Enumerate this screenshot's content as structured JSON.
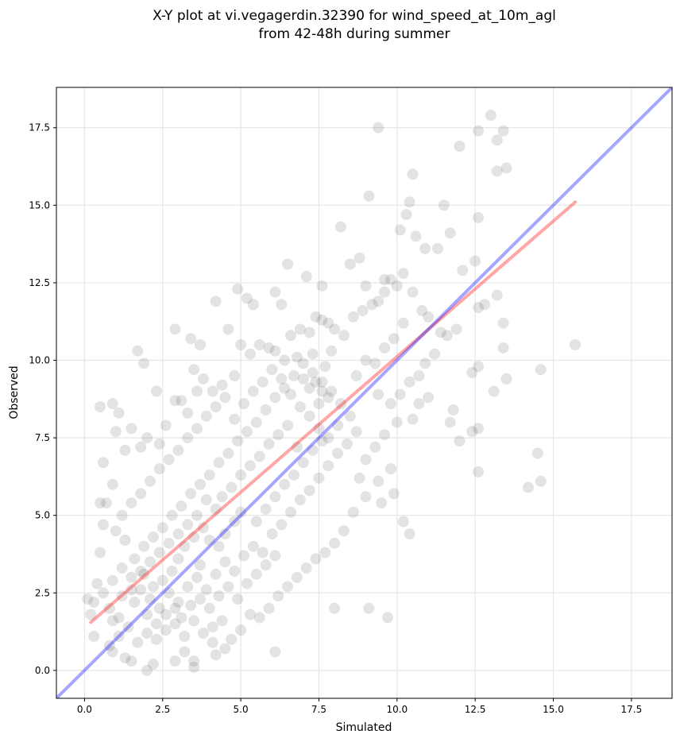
{
  "chart_data": {
    "type": "scatter",
    "title_line1": "X-Y plot at vi.vegagerdin.32390 for wind_speed_at_10m_agl",
    "title_line2": "from 42-48h during summer",
    "xlabel": "Simulated",
    "ylabel": "Observed",
    "xlim": [
      -0.9,
      18.8
    ],
    "ylim": [
      -0.9,
      18.8
    ],
    "xticks": [
      0.0,
      2.5,
      5.0,
      7.5,
      10.0,
      12.5,
      15.0,
      17.5
    ],
    "yticks": [
      0.0,
      2.5,
      5.0,
      7.5,
      10.0,
      12.5,
      15.0,
      17.5
    ],
    "xtick_labels": [
      "0.0",
      "2.5",
      "5.0",
      "7.5",
      "10.0",
      "12.5",
      "15.0",
      "17.5"
    ],
    "ytick_labels": [
      "0.0",
      "2.5",
      "5.0",
      "7.5",
      "10.0",
      "12.5",
      "15.0",
      "17.5"
    ],
    "grid": true,
    "point_color": "#404040",
    "point_alpha": 0.15,
    "identity_line": {
      "color": "#0000ff",
      "x": [
        -0.9,
        18.8
      ],
      "y": [
        -0.9,
        18.8
      ]
    },
    "fit_line": {
      "color": "#ff0000",
      "x": [
        0.2,
        15.7
      ],
      "y": [
        1.55,
        15.1
      ]
    },
    "points": [
      [
        0.5,
        8.5
      ],
      [
        0.9,
        8.6
      ],
      [
        1.1,
        8.3
      ],
      [
        1.7,
        10.3
      ],
      [
        1.9,
        9.9
      ],
      [
        2.3,
        9.0
      ],
      [
        2.9,
        11.0
      ],
      [
        3.4,
        10.7
      ],
      [
        3.7,
        10.5
      ],
      [
        4.2,
        11.9
      ],
      [
        4.6,
        11.0
      ],
      [
        4.9,
        12.3
      ],
      [
        5.2,
        12.0
      ],
      [
        5.4,
        11.8
      ],
      [
        6.1,
        12.2
      ],
      [
        6.3,
        11.8
      ],
      [
        6.5,
        13.1
      ],
      [
        7.1,
        12.7
      ],
      [
        7.6,
        12.4
      ],
      [
        8.2,
        14.3
      ],
      [
        8.5,
        13.1
      ],
      [
        8.8,
        13.3
      ],
      [
        9.0,
        12.4
      ],
      [
        9.1,
        15.3
      ],
      [
        9.4,
        17.5
      ],
      [
        9.6,
        12.6
      ],
      [
        10.1,
        14.2
      ],
      [
        10.3,
        14.7
      ],
      [
        10.4,
        15.1
      ],
      [
        10.5,
        16.0
      ],
      [
        10.6,
        14.0
      ],
      [
        10.9,
        13.6
      ],
      [
        11.3,
        13.6
      ],
      [
        11.5,
        15.0
      ],
      [
        11.7,
        14.1
      ],
      [
        12.0,
        16.9
      ],
      [
        12.6,
        17.4
      ],
      [
        13.0,
        17.9
      ],
      [
        13.2,
        17.1
      ],
      [
        13.4,
        17.4
      ],
      [
        13.2,
        16.1
      ],
      [
        13.5,
        16.2
      ],
      [
        12.6,
        14.6
      ],
      [
        12.5,
        13.2
      ],
      [
        12.1,
        12.9
      ],
      [
        13.2,
        12.1
      ],
      [
        13.4,
        11.2
      ],
      [
        12.8,
        11.8
      ],
      [
        12.6,
        11.7
      ],
      [
        13.1,
        9.0
      ],
      [
        13.5,
        9.4
      ],
      [
        13.4,
        10.4
      ],
      [
        12.6,
        9.8
      ],
      [
        12.4,
        9.6
      ],
      [
        12.0,
        7.4
      ],
      [
        12.4,
        7.7
      ],
      [
        12.6,
        7.8
      ],
      [
        12.6,
        6.4
      ],
      [
        11.7,
        8.0
      ],
      [
        11.8,
        8.4
      ],
      [
        14.2,
        5.9
      ],
      [
        14.6,
        6.1
      ],
      [
        14.5,
        7.0
      ],
      [
        14.6,
        9.7
      ],
      [
        15.7,
        10.5
      ],
      [
        10.4,
        4.4
      ],
      [
        10.2,
        4.8
      ],
      [
        9.9,
        5.7
      ],
      [
        9.7,
        1.7
      ],
      [
        9.1,
        2.0
      ],
      [
        8.0,
        2.0
      ],
      [
        6.1,
        0.6
      ],
      [
        0.8,
        0.8
      ],
      [
        0.9,
        0.6
      ],
      [
        1.3,
        0.4
      ],
      [
        1.5,
        0.3
      ],
      [
        2.0,
        0.0
      ],
      [
        2.2,
        0.2
      ],
      [
        2.9,
        0.3
      ],
      [
        3.2,
        0.6
      ],
      [
        3.5,
        0.3
      ],
      [
        3.5,
        0.1
      ],
      [
        4.2,
        0.5
      ],
      [
        4.5,
        0.7
      ],
      [
        4.1,
        0.9
      ],
      [
        0.3,
        1.1
      ],
      [
        0.2,
        1.8
      ],
      [
        0.1,
        2.3
      ],
      [
        0.3,
        2.2
      ],
      [
        0.4,
        2.8
      ],
      [
        0.5,
        3.8
      ],
      [
        0.6,
        4.7
      ],
      [
        0.5,
        5.4
      ],
      [
        0.7,
        5.4
      ],
      [
        0.6,
        6.7
      ],
      [
        0.9,
        6.0
      ],
      [
        1.0,
        7.7
      ],
      [
        1.3,
        7.1
      ],
      [
        1.5,
        7.8
      ],
      [
        1.8,
        7.2
      ],
      [
        2.0,
        7.5
      ],
      [
        2.4,
        7.3
      ],
      [
        2.6,
        7.9
      ],
      [
        2.9,
        8.7
      ],
      [
        3.1,
        8.7
      ],
      [
        3.3,
        8.3
      ],
      [
        3.5,
        9.7
      ],
      [
        3.8,
        9.4
      ],
      [
        3.6,
        9.0
      ],
      [
        4.1,
        9.0
      ],
      [
        4.4,
        9.2
      ],
      [
        4.8,
        9.5
      ],
      [
        5.0,
        10.5
      ],
      [
        5.3,
        10.2
      ],
      [
        5.6,
        10.5
      ],
      [
        5.9,
        10.4
      ],
      [
        6.1,
        10.3
      ],
      [
        6.4,
        10.0
      ],
      [
        6.6,
        10.8
      ],
      [
        6.9,
        11.0
      ],
      [
        7.2,
        10.9
      ],
      [
        7.4,
        11.4
      ],
      [
        7.6,
        11.3
      ],
      [
        7.8,
        11.2
      ],
      [
        8.0,
        11.0
      ],
      [
        8.3,
        10.8
      ],
      [
        8.6,
        11.4
      ],
      [
        8.9,
        11.6
      ],
      [
        9.2,
        11.8
      ],
      [
        9.4,
        11.9
      ],
      [
        9.6,
        12.2
      ],
      [
        9.8,
        12.6
      ],
      [
        10.0,
        12.4
      ],
      [
        10.2,
        12.8
      ],
      [
        10.5,
        12.2
      ],
      [
        10.8,
        11.6
      ],
      [
        11.0,
        11.4
      ],
      [
        11.4,
        10.9
      ],
      [
        11.6,
        10.8
      ],
      [
        11.9,
        11.0
      ],
      [
        10.2,
        11.2
      ],
      [
        9.9,
        10.7
      ],
      [
        9.6,
        10.4
      ],
      [
        9.3,
        9.9
      ],
      [
        9.0,
        10.0
      ],
      [
        8.7,
        9.5
      ],
      [
        9.4,
        8.9
      ],
      [
        9.8,
        8.6
      ],
      [
        10.1,
        8.9
      ],
      [
        10.4,
        9.3
      ],
      [
        10.7,
        9.5
      ],
      [
        10.9,
        9.9
      ],
      [
        11.2,
        10.2
      ],
      [
        11.0,
        8.8
      ],
      [
        10.7,
        8.6
      ],
      [
        10.5,
        8.1
      ],
      [
        10.0,
        8.0
      ],
      [
        9.6,
        7.6
      ],
      [
        9.3,
        7.2
      ],
      [
        9.0,
        6.8
      ],
      [
        8.8,
        6.2
      ],
      [
        9.4,
        6.1
      ],
      [
        9.8,
        6.5
      ],
      [
        9.5,
        5.4
      ],
      [
        9.0,
        5.6
      ],
      [
        8.6,
        5.1
      ],
      [
        8.3,
        4.5
      ],
      [
        8.0,
        4.1
      ],
      [
        7.7,
        3.8
      ],
      [
        7.4,
        3.6
      ],
      [
        7.1,
        3.3
      ],
      [
        6.8,
        3.0
      ],
      [
        6.5,
        2.7
      ],
      [
        6.2,
        2.4
      ],
      [
        5.9,
        2.0
      ],
      [
        5.6,
        1.7
      ],
      [
        5.3,
        1.8
      ],
      [
        5.0,
        1.3
      ],
      [
        4.7,
        1.0
      ],
      [
        4.4,
        1.6
      ],
      [
        4.1,
        1.4
      ],
      [
        3.8,
        1.2
      ],
      [
        3.5,
        1.6
      ],
      [
        3.2,
        1.1
      ],
      [
        2.9,
        1.5
      ],
      [
        2.6,
        1.3
      ],
      [
        2.3,
        1.0
      ],
      [
        2.0,
        1.2
      ],
      [
        1.7,
        0.9
      ],
      [
        1.4,
        1.4
      ],
      [
        1.1,
        1.7
      ],
      [
        0.8,
        2.0
      ],
      [
        0.6,
        2.5
      ],
      [
        0.9,
        2.9
      ],
      [
        1.2,
        3.3
      ],
      [
        1.5,
        3.0
      ],
      [
        1.8,
        2.6
      ],
      [
        2.1,
        2.3
      ],
      [
        2.4,
        2.0
      ],
      [
        2.7,
        2.5
      ],
      [
        3.0,
        2.2
      ],
      [
        3.3,
        2.7
      ],
      [
        3.6,
        3.0
      ],
      [
        3.9,
        2.6
      ],
      [
        4.2,
        3.1
      ],
      [
        4.5,
        3.5
      ],
      [
        4.8,
        3.2
      ],
      [
        5.1,
        3.7
      ],
      [
        5.4,
        4.0
      ],
      [
        5.7,
        3.8
      ],
      [
        6.0,
        4.4
      ],
      [
        6.3,
        4.7
      ],
      [
        6.6,
        5.1
      ],
      [
        6.9,
        5.5
      ],
      [
        7.2,
        5.8
      ],
      [
        7.5,
        6.2
      ],
      [
        7.8,
        6.6
      ],
      [
        8.1,
        7.0
      ],
      [
        8.4,
        7.3
      ],
      [
        8.7,
        7.7
      ],
      [
        8.5,
        8.2
      ],
      [
        8.2,
        8.6
      ],
      [
        7.9,
        9.0
      ],
      [
        7.6,
        9.3
      ],
      [
        7.3,
        9.6
      ],
      [
        7.0,
        9.9
      ],
      [
        6.7,
        9.5
      ],
      [
        6.4,
        9.1
      ],
      [
        6.1,
        8.8
      ],
      [
        5.8,
        8.4
      ],
      [
        5.5,
        8.0
      ],
      [
        5.2,
        7.7
      ],
      [
        4.9,
        7.4
      ],
      [
        4.6,
        7.0
      ],
      [
        4.3,
        6.7
      ],
      [
        4.0,
        6.3
      ],
      [
        3.7,
        6.0
      ],
      [
        3.4,
        5.7
      ],
      [
        3.1,
        5.3
      ],
      [
        2.8,
        5.0
      ],
      [
        2.5,
        4.6
      ],
      [
        2.2,
        4.3
      ],
      [
        1.9,
        4.0
      ],
      [
        1.6,
        3.6
      ],
      [
        1.3,
        4.2
      ],
      [
        1.0,
        4.5
      ],
      [
        1.2,
        5.0
      ],
      [
        1.5,
        5.4
      ],
      [
        1.8,
        5.7
      ],
      [
        2.1,
        6.1
      ],
      [
        2.4,
        6.5
      ],
      [
        2.7,
        6.8
      ],
      [
        3.0,
        7.1
      ],
      [
        3.3,
        7.5
      ],
      [
        3.6,
        7.8
      ],
      [
        3.9,
        8.2
      ],
      [
        4.2,
        8.5
      ],
      [
        4.5,
        8.8
      ],
      [
        4.8,
        8.1
      ],
      [
        5.1,
        8.6
      ],
      [
        5.4,
        9.0
      ],
      [
        5.7,
        9.3
      ],
      [
        6.0,
        9.7
      ],
      [
        6.3,
        9.4
      ],
      [
        6.6,
        8.9
      ],
      [
        6.9,
        8.5
      ],
      [
        7.2,
        8.2
      ],
      [
        7.5,
        7.8
      ],
      [
        7.8,
        7.5
      ],
      [
        8.1,
        7.9
      ],
      [
        7.4,
        9.3
      ],
      [
        7.6,
        9.0
      ],
      [
        7.8,
        8.8
      ],
      [
        7.5,
        8.6
      ],
      [
        7.2,
        9.1
      ],
      [
        7.0,
        9.4
      ],
      [
        7.7,
        9.8
      ],
      [
        7.3,
        10.2
      ],
      [
        6.8,
        10.1
      ],
      [
        7.9,
        10.3
      ],
      [
        3.0,
        3.6
      ],
      [
        3.2,
        4.0
      ],
      [
        3.5,
        4.3
      ],
      [
        3.8,
        4.6
      ],
      [
        4.0,
        4.2
      ],
      [
        4.3,
        4.0
      ],
      [
        3.7,
        3.4
      ],
      [
        2.8,
        3.2
      ],
      [
        2.5,
        2.9
      ],
      [
        2.2,
        2.7
      ],
      [
        1.9,
        3.1
      ],
      [
        1.6,
        2.2
      ],
      [
        2.0,
        1.8
      ],
      [
        2.3,
        1.5
      ],
      [
        2.6,
        1.8
      ],
      [
        2.9,
        2.0
      ],
      [
        3.1,
        1.7
      ],
      [
        3.4,
        2.1
      ],
      [
        3.7,
        2.3
      ],
      [
        4.0,
        2.0
      ],
      [
        4.3,
        2.4
      ],
      [
        4.6,
        2.7
      ],
      [
        4.9,
        2.3
      ],
      [
        5.2,
        2.8
      ],
      [
        5.5,
        3.1
      ],
      [
        5.8,
        3.4
      ],
      [
        6.1,
        3.7
      ],
      [
        5.5,
        4.8
      ],
      [
        5.8,
        5.2
      ],
      [
        6.1,
        5.6
      ],
      [
        6.4,
        6.0
      ],
      [
        6.7,
        6.3
      ],
      [
        7.0,
        6.7
      ],
      [
        7.3,
        7.1
      ],
      [
        7.6,
        7.4
      ],
      [
        4.4,
        5.6
      ],
      [
        4.7,
        5.9
      ],
      [
        5.0,
        6.3
      ],
      [
        5.3,
        6.6
      ],
      [
        5.6,
        6.9
      ],
      [
        5.9,
        7.3
      ],
      [
        6.2,
        7.6
      ],
      [
        6.5,
        7.9
      ],
      [
        6.8,
        7.2
      ],
      [
        5.0,
        5.1
      ],
      [
        4.8,
        4.8
      ],
      [
        4.5,
        4.4
      ],
      [
        4.2,
        5.2
      ],
      [
        3.9,
        5.5
      ],
      [
        3.6,
        5.0
      ],
      [
        3.3,
        4.7
      ],
      [
        3.0,
        4.4
      ],
      [
        2.7,
        4.1
      ],
      [
        2.4,
        3.8
      ],
      [
        2.1,
        3.5
      ],
      [
        1.8,
        3.2
      ],
      [
        1.5,
        2.6
      ],
      [
        1.2,
        2.4
      ],
      [
        0.9,
        1.6
      ],
      [
        1.1,
        1.1
      ]
    ]
  }
}
